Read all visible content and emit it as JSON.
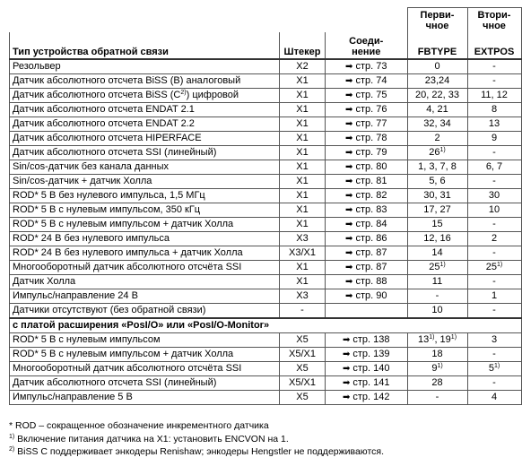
{
  "table": {
    "header": {
      "top": [
        [
          "Перви-",
          "чное"
        ],
        [
          "Втори-",
          "чное"
        ]
      ],
      "columns": [
        "Тип устройства обратной связи",
        "Штекер",
        [
          "Соеди-",
          "нение"
        ],
        "FBTYPE",
        "EXTPOS"
      ]
    },
    "rows": [
      [
        "Резольвер",
        "X2",
        "стр. 73",
        "0",
        "-"
      ],
      [
        "Датчик абсолютного отсчета BiSS (B) аналоговый",
        "X1",
        "стр. 74",
        "23,24",
        "-"
      ],
      [
        [
          "Датчик абсолютного отсчета BiSS (C",
          {
            "sup": "2)"
          },
          ") цифровой"
        ],
        "X1",
        "стр. 75",
        "20, 22, 33",
        "11, 12"
      ],
      [
        "Датчик абсолютного отсчета ENDAT 2.1",
        "X1",
        "стр. 76",
        "4, 21",
        "8"
      ],
      [
        "Датчик абсолютного отсчета ENDAT 2.2",
        "X1",
        "стр. 77",
        "32, 34",
        "13"
      ],
      [
        "Датчик абсолютного отсчета HIPERFACE",
        "X1",
        "стр. 78",
        "2",
        "9"
      ],
      [
        "Датчик абсолютного отсчета SSI (линейный)",
        "X1",
        "стр. 79",
        [
          "26",
          {
            "sup": "1)"
          }
        ],
        "-"
      ],
      [
        "Sin/cos-датчик без канала данных",
        "X1",
        "стр. 80",
        "1, 3, 7, 8",
        "6, 7"
      ],
      [
        "Sin/cos-датчик + датчик Холла",
        "X1",
        "стр. 81",
        "5, 6",
        "-"
      ],
      [
        "ROD* 5 В без нулевого импульса, 1,5 МГц",
        "X1",
        "стр. 82",
        "30, 31",
        "30"
      ],
      [
        "ROD* 5 В с нулевым импульсом, 350 кГц",
        "X1",
        "стр. 83",
        "17, 27",
        "10"
      ],
      [
        "ROD* 5 В с нулевым импульсом + датчик Холла",
        "X1",
        "стр. 84",
        "15",
        "-"
      ],
      [
        "ROD* 24 В без нулевого импульса",
        "X3",
        "стр. 86",
        "12, 16",
        "2"
      ],
      [
        "ROD* 24 В без нулевого импульса + датчик Холла",
        "X3/X1",
        "стр. 87",
        "14",
        "-"
      ],
      [
        "Многооборотный датчик абсолютного отсчёта SSI",
        "X1",
        "стр. 87",
        [
          "25",
          {
            "sup": "1)"
          }
        ],
        [
          "25",
          {
            "sup": "1)"
          }
        ]
      ],
      [
        "Датчик Холла",
        "X1",
        "стр. 88",
        "11",
        "-"
      ],
      [
        "Импульс/направление 24 В",
        "X3",
        "стр. 90",
        "-",
        "1"
      ],
      [
        "Датчики отсутствуют (без обратной связи)",
        "-",
        null,
        "10",
        "-"
      ]
    ],
    "section": "с платой расширения «PosI/O» или «PosI/O-Monitor»",
    "section_rows": [
      [
        "ROD* 5 В с нулевым импульсом",
        "X5",
        "стр. 138",
        [
          "13",
          {
            "sup": "1)"
          },
          ", 19",
          {
            "sup": "1)"
          }
        ],
        "3"
      ],
      [
        "ROD* 5 В с нулевым импульсом + датчик Холла",
        "X5/X1",
        "стр. 139",
        "18",
        "-"
      ],
      [
        "Многооборотный датчик абсолютного отсчёта SSI",
        "X5",
        "стр. 140",
        [
          "9",
          {
            "sup": "1)"
          }
        ],
        [
          "5",
          {
            "sup": "1)"
          }
        ]
      ],
      [
        "Датчик абсолютного отсчета SSI (линейный)",
        "X5/X1",
        "стр. 141",
        "28",
        "-"
      ],
      [
        "Импульс/направление 5 В",
        "X5",
        "стр. 142",
        "-",
        "4"
      ]
    ]
  },
  "footnotes": [
    "* ROD – сокращенное обозначение инкрементного датчика",
    [
      {
        "sup": "1)"
      },
      " Включение питания датчика на X1: установить ENCVON на 1."
    ],
    [
      {
        "sup": "2)"
      },
      " BiSS C поддерживает энкодеры Renishaw; энкодеры Hengstler не поддерживаются."
    ]
  ]
}
